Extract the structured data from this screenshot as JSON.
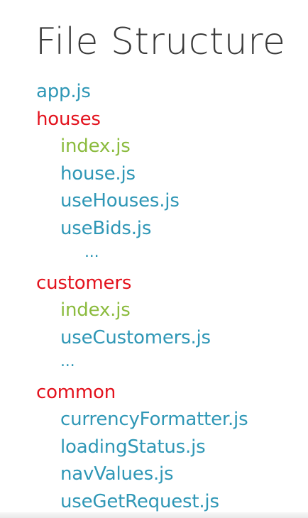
{
  "title": "File Structure",
  "colors": {
    "file": "#2f97b6",
    "folder": "#e3121d",
    "index": "#8bbb3e",
    "title": "#3a3a3a"
  },
  "tree": [
    {
      "label": "app.js",
      "kind": "file",
      "level": 0
    },
    {
      "label": "houses",
      "kind": "folder",
      "level": 0
    },
    {
      "label": "index.js",
      "kind": "index",
      "level": 1
    },
    {
      "label": "house.js",
      "kind": "file",
      "level": 1
    },
    {
      "label": "useHouses.js",
      "kind": "file",
      "level": 1
    },
    {
      "label": "useBids.js",
      "kind": "file",
      "level": 1
    },
    {
      "label": "...",
      "kind": "file",
      "level": 2
    },
    {
      "label": "customers",
      "kind": "folder",
      "level": 0
    },
    {
      "label": "index.js",
      "kind": "index",
      "level": 1
    },
    {
      "label": "useCustomers.js",
      "kind": "file",
      "level": 1
    },
    {
      "label": "...",
      "kind": "file",
      "level": 1
    },
    {
      "label": "common",
      "kind": "folder",
      "level": 0
    },
    {
      "label": "currencyFormatter.js",
      "kind": "file",
      "level": 1
    },
    {
      "label": "loadingStatus.js",
      "kind": "file",
      "level": 1
    },
    {
      "label": "navValues.js",
      "kind": "file",
      "level": 1
    },
    {
      "label": "useGetRequest.js",
      "kind": "file",
      "level": 1
    }
  ]
}
